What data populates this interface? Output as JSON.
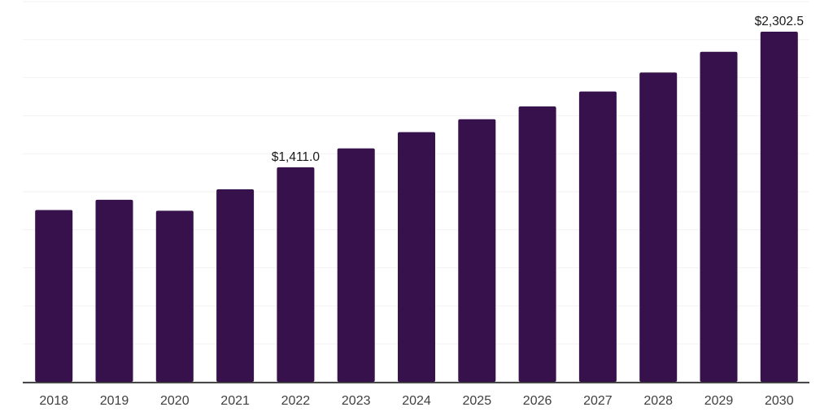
{
  "chart_data": {
    "type": "bar",
    "title": "",
    "xlabel": "",
    "ylabel": "",
    "categories": [
      "2018",
      "2019",
      "2020",
      "2021",
      "2022",
      "2023",
      "2024",
      "2025",
      "2026",
      "2027",
      "2028",
      "2029",
      "2030"
    ],
    "values": [
      1130,
      1197,
      1125,
      1266,
      1411.0,
      1535,
      1642,
      1727,
      1811,
      1909,
      2034,
      2170,
      2302.5
    ],
    "data_labels": [
      {
        "category": "2022",
        "text": "$1,411.0"
      },
      {
        "category": "2030",
        "text": "$2,302.5"
      }
    ],
    "ylim": [
      0,
      2500
    ],
    "grid_step": 250,
    "grid": "horizontal-only",
    "y_axis_tick_labels": "hidden",
    "legend_position": "none",
    "colors": {
      "bar": "#36114b",
      "gridline": "#f2f2f2",
      "axis_line": "#333333",
      "x_label_text": "#404040",
      "data_label_text": "#1a1a1a",
      "background": "#ffffff"
    }
  }
}
